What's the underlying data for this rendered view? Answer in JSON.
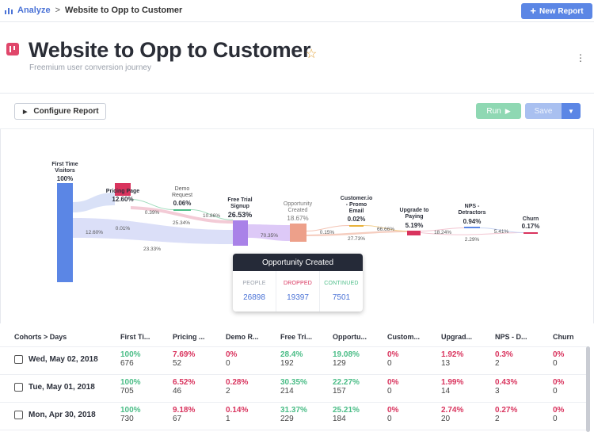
{
  "breadcrumb": {
    "root": "Analyze",
    "separator": ">",
    "current": "Website to Opp to Customer"
  },
  "new_report_label": "New Report",
  "page": {
    "title": "Website to Opp to Customer",
    "subtitle": "Freemium user conversion journey"
  },
  "toolbar": {
    "configure_label": "Configure Report",
    "run_label": "Run",
    "save_label": "Save"
  },
  "colors": {
    "accent": "#5b86e5",
    "pink": "#d9345e",
    "green": "#4bbd87",
    "blue_bar": "#5b86e5",
    "purple": "#a982e8",
    "salmon": "#eda08a"
  },
  "funnel": {
    "steps": [
      {
        "name": "First Time Visitors",
        "l1": "First Time",
        "l2": "Visitors",
        "pct": "100%",
        "color": "#5b86e5"
      },
      {
        "name": "Pricing Page",
        "l1": "Pricing Page",
        "l2": "",
        "pct": "12.60%",
        "color": "#d9345e"
      },
      {
        "name": "Demo Request",
        "l1": "Demo",
        "l2": "Request",
        "pct": "0.06%",
        "color": "#4bbd87"
      },
      {
        "name": "Free Trial Signup",
        "l1": "Free Trial",
        "l2": "Signup",
        "pct": "26.53%",
        "color": "#a982e8"
      },
      {
        "name": "Opportunity Created",
        "l1": "Opportunity",
        "l2": "Created",
        "pct": "18.67%",
        "color": "#eda08a"
      },
      {
        "name": "Customer.io - Promo Email",
        "l1": "Customer.io",
        "l2": "- Promo",
        "l3": "Email",
        "pct": "0.02%",
        "color": "#e8b23a"
      },
      {
        "name": "Upgrade to Paying",
        "l1": "Upgrade to",
        "l2": "Paying",
        "pct": "5.19%",
        "color": "#d9345e"
      },
      {
        "name": "NPS - Detractors",
        "l1": "NPS -",
        "l2": "Detractors",
        "pct": "0.94%",
        "color": "#5b86e5"
      },
      {
        "name": "Churn",
        "l1": "Churn",
        "l2": "",
        "pct": "0.17%",
        "color": "#d9345e"
      }
    ],
    "flow_labels": [
      "12.60%",
      "0.01%",
      "23.33%",
      "0.39%",
      "25.34%",
      "10.86%",
      "70.35%",
      "0.15%",
      "27.73%",
      "66.66%",
      "18.24%",
      "2.29%",
      "5.41%"
    ]
  },
  "tooltip": {
    "title": "Opportunity Created",
    "people_label": "PEOPLE",
    "people_value": "26898",
    "dropped_label": "DROPPED",
    "dropped_value": "19397",
    "continued_label": "CONTINUED",
    "continued_value": "7501"
  },
  "table": {
    "headers": [
      "Cohorts > Days",
      "First Ti...",
      "Pricing ...",
      "Demo R...",
      "Free Tri...",
      "Opportu...",
      "Custom...",
      "Upgrad...",
      "NPS - D...",
      "Churn"
    ],
    "rows": [
      {
        "date": "Wed, May 02, 2018",
        "pcts": [
          "100%",
          "7.69%",
          "0%",
          "28.4%",
          "19.08%",
          "0%",
          "1.92%",
          "0.3%",
          "0%"
        ],
        "counts": [
          "676",
          "52",
          "0",
          "192",
          "129",
          "0",
          "13",
          "2",
          "0"
        ]
      },
      {
        "date": "Tue, May 01, 2018",
        "pcts": [
          "100%",
          "6.52%",
          "0.28%",
          "30.35%",
          "22.27%",
          "0%",
          "1.99%",
          "0.43%",
          "0%"
        ],
        "counts": [
          "705",
          "46",
          "2",
          "214",
          "157",
          "0",
          "14",
          "3",
          "0"
        ]
      },
      {
        "date": "Mon, Apr 30, 2018",
        "pcts": [
          "100%",
          "9.18%",
          "0.14%",
          "31.37%",
          "25.21%",
          "0%",
          "2.74%",
          "0.27%",
          "0%"
        ],
        "counts": [
          "730",
          "67",
          "1",
          "229",
          "184",
          "0",
          "20",
          "2",
          "0"
        ]
      }
    ]
  }
}
